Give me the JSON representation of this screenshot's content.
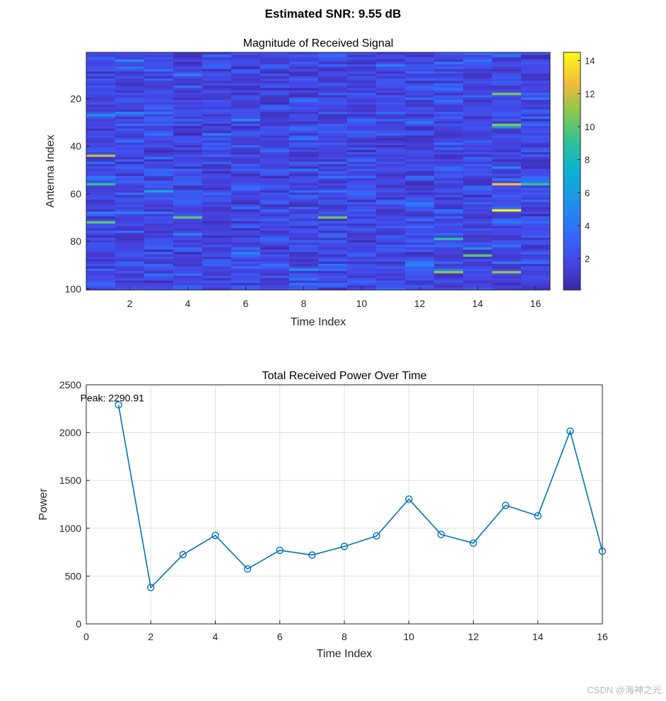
{
  "figure": {
    "suptitle": "Estimated SNR: 9.55 dB",
    "watermark": "CSDN @海神之光"
  },
  "chart_data": [
    {
      "type": "heatmap",
      "title": "Magnitude of Received Signal",
      "xlabel": "Time Index",
      "ylabel": "Antenna Index",
      "rows": 100,
      "cols": 16,
      "xlim": [
        0.5,
        16.5
      ],
      "ylim": [
        100.5,
        0.5
      ],
      "y_reversed": true,
      "xticks": [
        2,
        4,
        6,
        8,
        10,
        12,
        14,
        16
      ],
      "yticks": [
        20,
        40,
        60,
        80,
        100
      ],
      "colormap": "parula",
      "colorbar": {
        "min": 0.1,
        "max": 14.5,
        "ticks": [
          2,
          4,
          6,
          8,
          10,
          12,
          14
        ]
      },
      "notable_cells": [
        {
          "col": 15,
          "row": 67,
          "value": 14.3
        },
        {
          "col": 15,
          "row": 56,
          "value": 12.5
        },
        {
          "col": 15,
          "row": 31,
          "value": 11.0
        },
        {
          "col": 15,
          "row": 18,
          "value": 10.5
        },
        {
          "col": 15,
          "row": 93,
          "value": 11.0
        },
        {
          "col": 13,
          "row": 93,
          "value": 11.0
        },
        {
          "col": 13,
          "row": 79,
          "value": 9.0
        },
        {
          "col": 1,
          "row": 44,
          "value": 11.5
        },
        {
          "col": 1,
          "row": 72,
          "value": 10.0
        },
        {
          "col": 1,
          "row": 56,
          "value": 9.0
        },
        {
          "col": 9,
          "row": 70,
          "value": 10.5
        },
        {
          "col": 4,
          "row": 70,
          "value": 10.0
        },
        {
          "col": 14,
          "row": 86,
          "value": 10.0
        },
        {
          "col": 16,
          "row": 56,
          "value": 9.0
        }
      ]
    },
    {
      "type": "line",
      "title": "Total Received Power Over Time",
      "xlabel": "Time Index",
      "ylabel": "Power",
      "x": [
        1,
        2,
        3,
        4,
        5,
        6,
        7,
        8,
        9,
        10,
        11,
        12,
        13,
        14,
        15,
        16
      ],
      "y": [
        2290.91,
        380,
        725,
        925,
        575,
        770,
        720,
        810,
        920,
        1305,
        935,
        845,
        1240,
        1130,
        2015,
        760
      ],
      "xlim": [
        0,
        16
      ],
      "ylim": [
        0,
        2500
      ],
      "xticks": [
        0,
        2,
        4,
        6,
        8,
        10,
        12,
        14,
        16
      ],
      "yticks": [
        0,
        500,
        1000,
        1500,
        2000,
        2500
      ],
      "grid": true,
      "marker": "circle",
      "color": "#0072bd",
      "annotation": {
        "text": "Peak: 2290.91",
        "x": 1,
        "y": 2290.91
      }
    }
  ]
}
